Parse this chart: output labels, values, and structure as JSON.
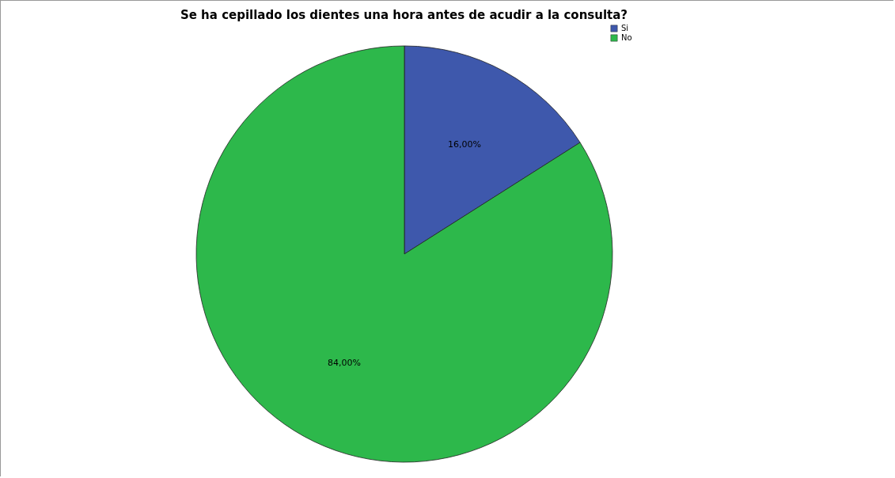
{
  "chart_data": {
    "type": "pie",
    "title": "Se ha cepillado los dientes una hora antes de acudir a la consulta?",
    "categories": [
      "Si",
      "No"
    ],
    "values": [
      16,
      84
    ],
    "colors": [
      "#3e58ac",
      "#2db84b"
    ],
    "value_labels": [
      "16,00%",
      "84,00%"
    ],
    "legend": "top right"
  }
}
